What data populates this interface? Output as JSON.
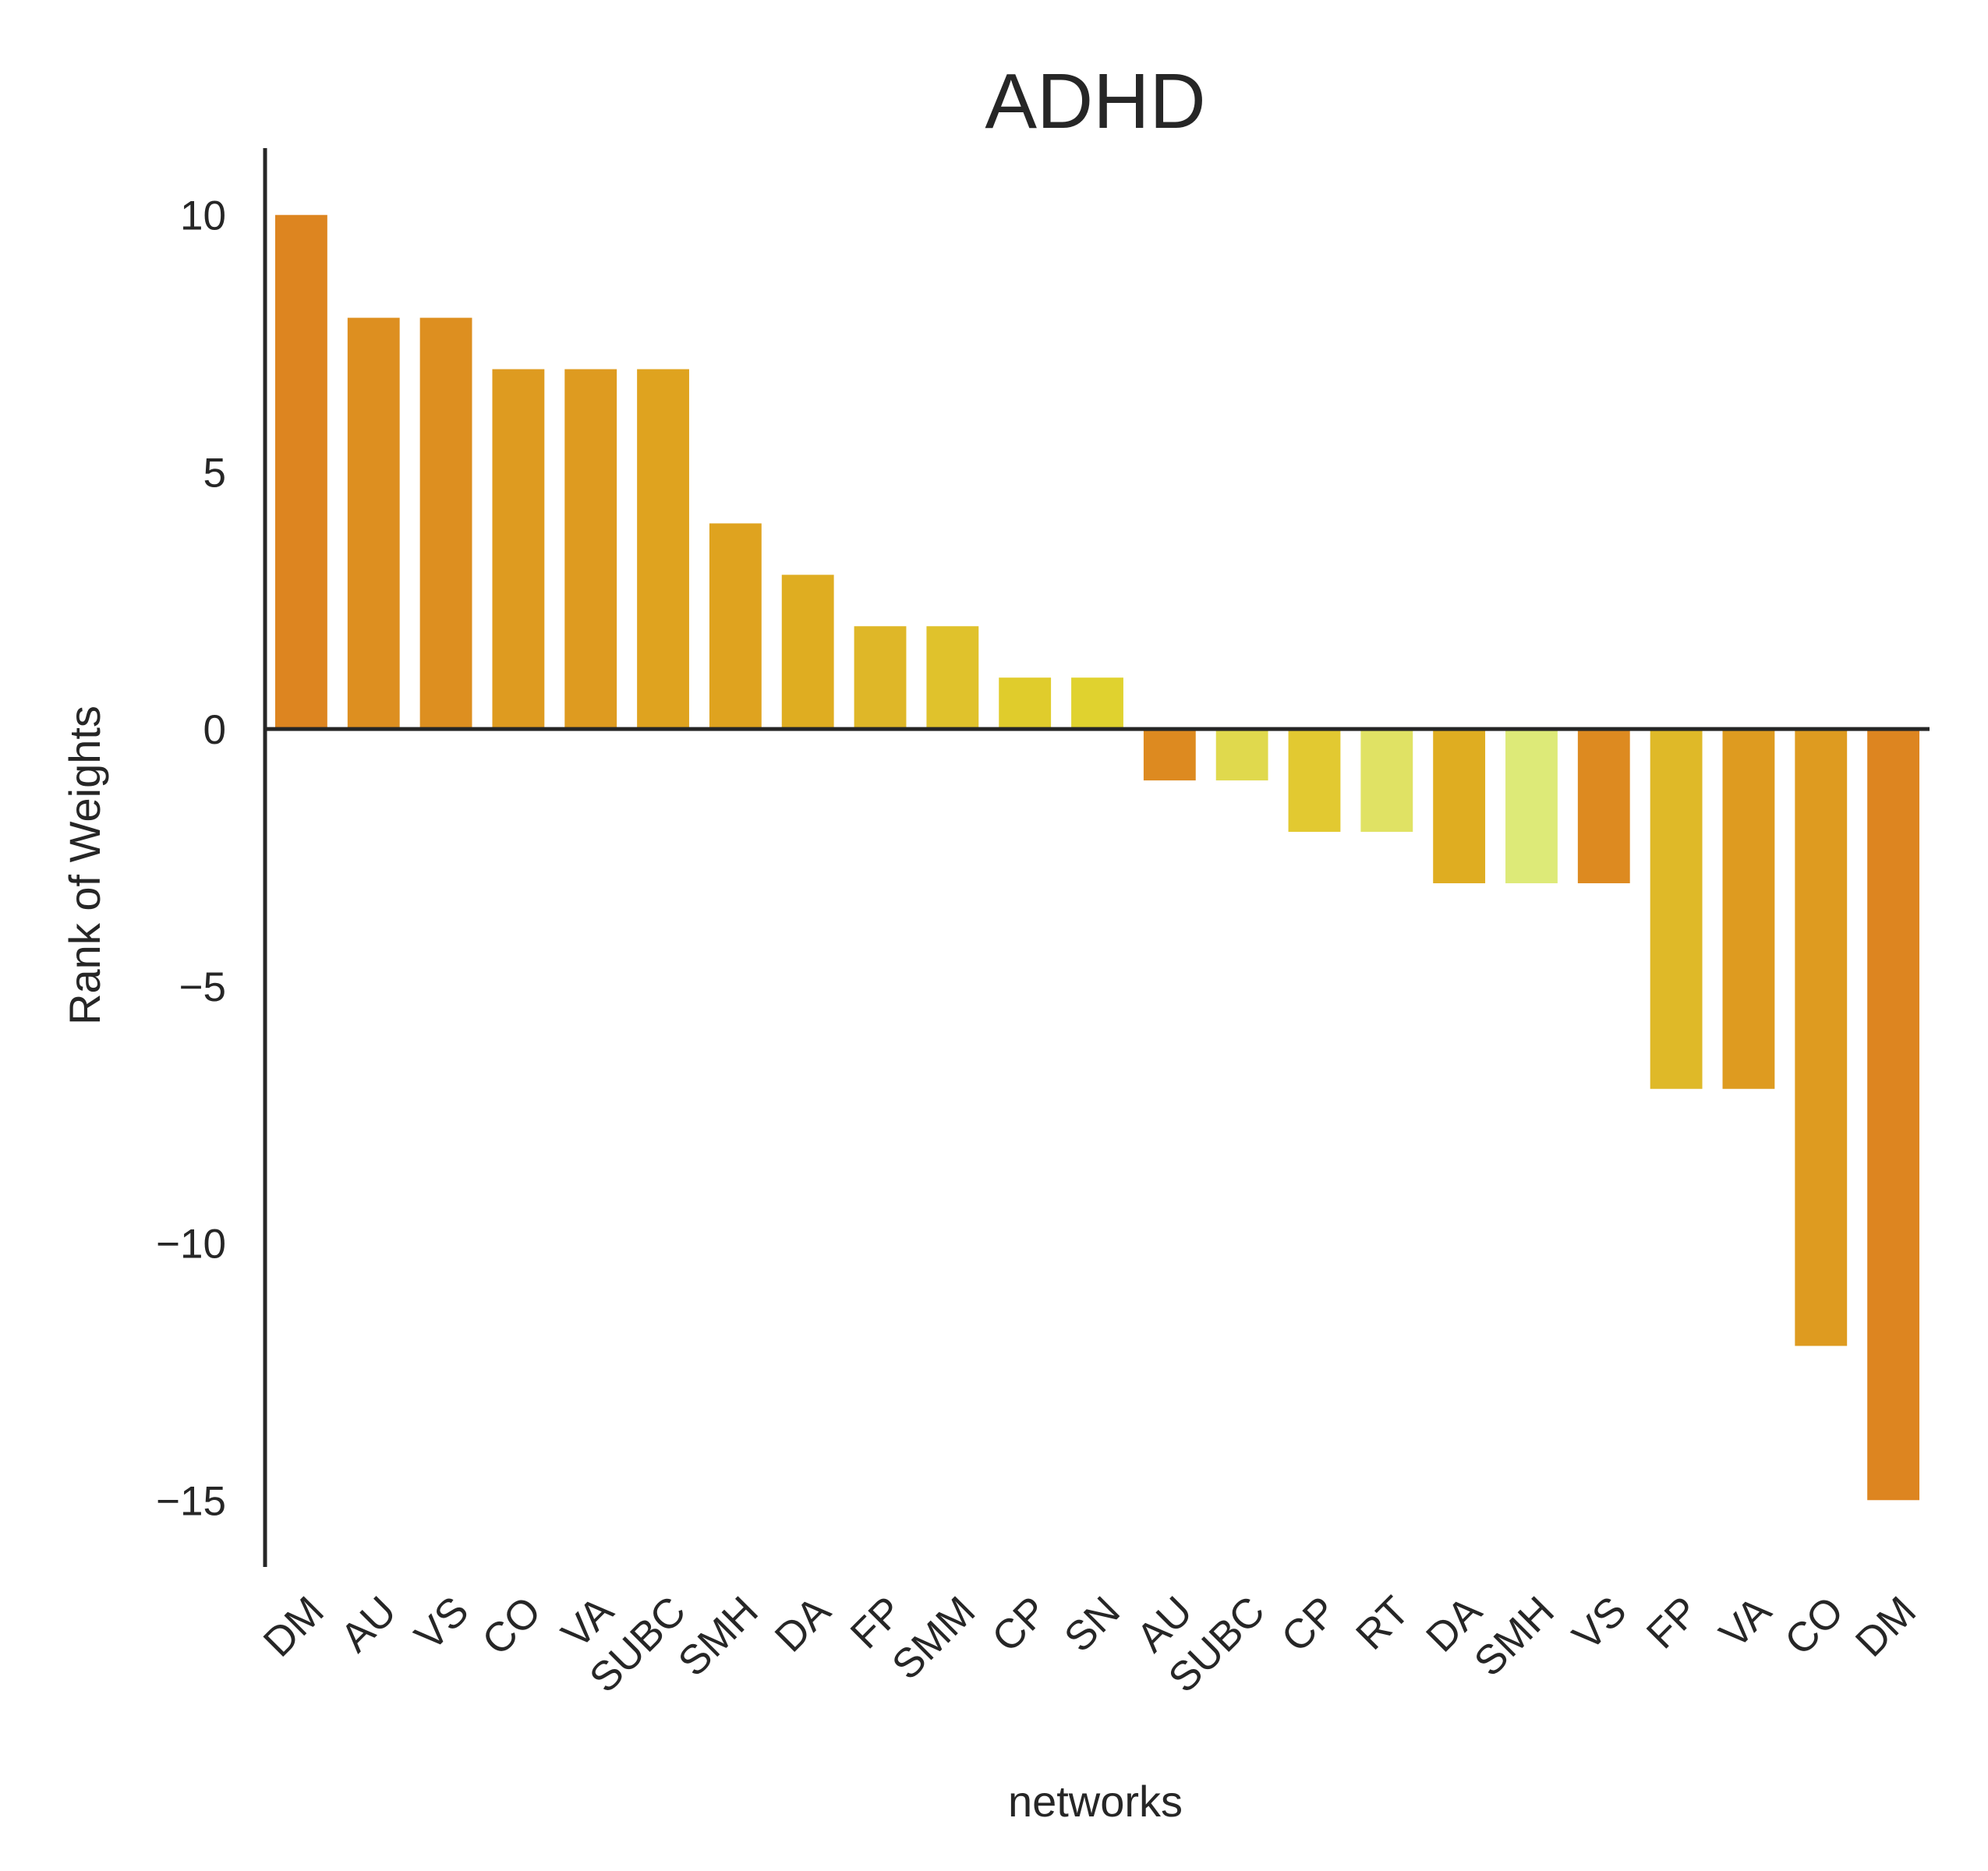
{
  "chart_data": {
    "type": "bar",
    "title": "ADHD",
    "xlabel": "networks",
    "ylabel": "Rank of Weights",
    "ylim": [
      -16.3,
      11.3
    ],
    "yticks": [
      10,
      5,
      0,
      -5,
      -10,
      -15
    ],
    "ytick_labels": [
      "10",
      "5",
      "0",
      "−5",
      "−10",
      "−15"
    ],
    "grid": false,
    "legend": "none",
    "categories": [
      "DM",
      "AU",
      "VS",
      "CO",
      "VA",
      "SUBC",
      "SMH",
      "DA",
      "FP",
      "SMM",
      "CP",
      "SN",
      "AU",
      "SUBC",
      "CP",
      "RT",
      "DA",
      "SMH",
      "VS",
      "FP",
      "VA",
      "CO",
      "DM"
    ],
    "values": [
      10,
      8,
      8,
      7,
      7,
      7,
      4,
      3,
      2,
      2,
      1,
      1,
      -1,
      -1,
      -2,
      -2,
      -3,
      -3,
      -3,
      -7,
      -7,
      -12,
      -15
    ],
    "colors": [
      "#dd8520",
      "#dd8f20",
      "#dd8f20",
      "#de9b20",
      "#de9b20",
      "#dfa31f",
      "#dfa31f",
      "#dfad21",
      "#dfb728",
      "#e0c22c",
      "#e0cc2c",
      "#e0d22f",
      "#dd8a20",
      "#e0d94d",
      "#e2c931",
      "#e0e264",
      "#dfad21",
      "#ddea78",
      "#dd8a20",
      "#dfb928",
      "#de9b20",
      "#de9b20",
      "#dd8520"
    ]
  }
}
